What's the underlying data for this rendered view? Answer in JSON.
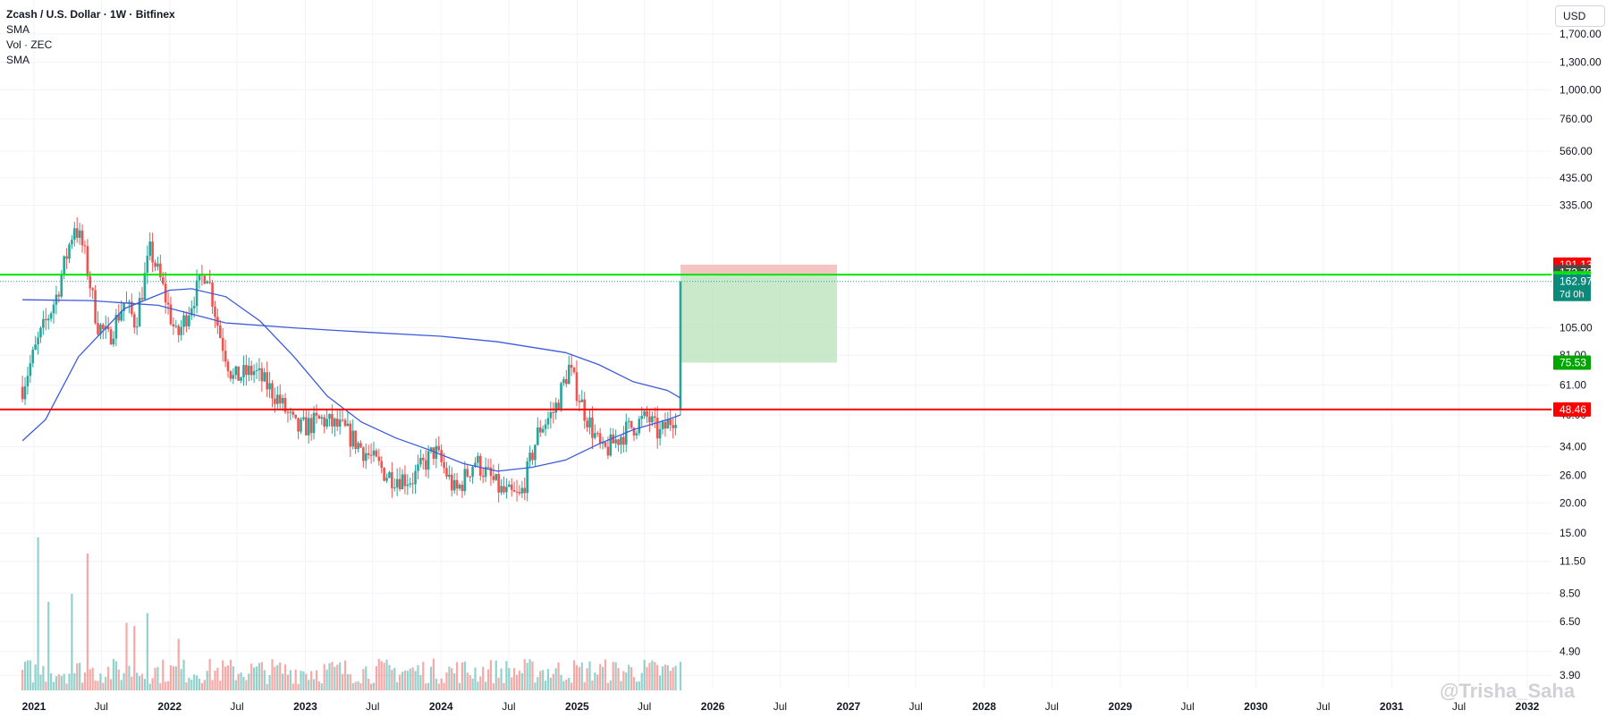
{
  "legend": {
    "title": "Zcash / U.S. Dollar · 1W · Bitfinex",
    "line1": "SMA",
    "line2": "Vol · ZEC",
    "line3": "SMA"
  },
  "currency_label": "USD",
  "watermark": "@Trisha_Saha",
  "colors": {
    "up": "#26a69a",
    "down": "#ef5350",
    "sma": "#3c5bdc",
    "support_line": "#ff0000",
    "resistance_line": "#00e600",
    "target_zone": "#b8e2b8",
    "stop_zone": "#f6c3c3"
  },
  "chart_data": {
    "type": "candlestick",
    "title": "Zcash / U.S. Dollar · 1W · Bitfinex",
    "y_scale": "log",
    "y_ticks": [
      "1,700.00",
      "1,300.00",
      "1,000.00",
      "760.00",
      "560.00",
      "435.00",
      "335.00",
      "105.00",
      "81.00",
      "61.00",
      "46.00",
      "34.00",
      "26.00",
      "20.00",
      "15.00",
      "11.50",
      "8.50",
      "6.50",
      "4.90",
      "3.90"
    ],
    "x_ticks": [
      "2021",
      "Jul",
      "2022",
      "Jul",
      "2023",
      "Jul",
      "2024",
      "Jul",
      "2025",
      "Jul",
      "2026",
      "Jul",
      "2027",
      "Jul",
      "2028",
      "Jul",
      "2029",
      "Jul",
      "2030",
      "Jul",
      "2031",
      "Jul",
      "2032"
    ],
    "close_path": [
      [
        "2020-12-01",
        60
      ],
      [
        "2021-01-15",
        95
      ],
      [
        "2021-03-01",
        140
      ],
      [
        "2021-04-20",
        280
      ],
      [
        "2021-05-15",
        220
      ],
      [
        "2021-06-20",
        110
      ],
      [
        "2021-07-20",
        95
      ],
      [
        "2021-09-01",
        135
      ],
      [
        "2021-10-01",
        110
      ],
      [
        "2021-11-10",
        220
      ],
      [
        "2021-12-10",
        160
      ],
      [
        "2022-01-20",
        95
      ],
      [
        "2022-03-10",
        145
      ],
      [
        "2022-04-10",
        185
      ],
      [
        "2022-05-15",
        100
      ],
      [
        "2022-06-20",
        65
      ],
      [
        "2022-08-15",
        70
      ],
      [
        "2022-10-15",
        55
      ],
      [
        "2022-12-10",
        40
      ],
      [
        "2023-02-15",
        44
      ],
      [
        "2023-04-15",
        40
      ],
      [
        "2023-06-15",
        32
      ],
      [
        "2023-08-10",
        26
      ],
      [
        "2023-10-15",
        25
      ],
      [
        "2023-12-15",
        33
      ],
      [
        "2024-02-10",
        22
      ],
      [
        "2024-04-01",
        30
      ],
      [
        "2024-06-15",
        22
      ],
      [
        "2024-08-01",
        21
      ],
      [
        "2024-09-20",
        40
      ],
      [
        "2024-11-01",
        48
      ],
      [
        "2024-12-10",
        72
      ],
      [
        "2025-01-20",
        48
      ],
      [
        "2025-03-10",
        32
      ],
      [
        "2025-05-15",
        40
      ],
      [
        "2025-07-10",
        45
      ],
      [
        "2025-08-10",
        38
      ],
      [
        "2025-09-15",
        45
      ],
      [
        "2025-09-29",
        48.46
      ],
      [
        "2025-10-06",
        162.97
      ]
    ],
    "sma_slow": [
      [
        "2020-12-01",
        137
      ],
      [
        "2021-06-01",
        136
      ],
      [
        "2021-12-01",
        130
      ],
      [
        "2022-06-01",
        110
      ],
      [
        "2022-12-01",
        105
      ],
      [
        "2023-06-01",
        101
      ],
      [
        "2024-01-01",
        97
      ],
      [
        "2024-06-01",
        92
      ],
      [
        "2024-12-01",
        83
      ],
      [
        "2025-03-01",
        74
      ],
      [
        "2025-06-01",
        63
      ],
      [
        "2025-09-01",
        58
      ],
      [
        "2025-10-06",
        54
      ]
    ],
    "sma_fast": [
      [
        "2020-12-01",
        36
      ],
      [
        "2021-02-01",
        44
      ],
      [
        "2021-05-01",
        80
      ],
      [
        "2021-09-01",
        126
      ],
      [
        "2022-01-01",
        150
      ],
      [
        "2022-03-01",
        152
      ],
      [
        "2022-06-01",
        141
      ],
      [
        "2022-09-01",
        112
      ],
      [
        "2022-12-01",
        80
      ],
      [
        "2023-03-01",
        55
      ],
      [
        "2023-06-01",
        43
      ],
      [
        "2023-09-01",
        37
      ],
      [
        "2023-12-01",
        33
      ],
      [
        "2024-03-01",
        29
      ],
      [
        "2024-06-01",
        27
      ],
      [
        "2024-09-01",
        28
      ],
      [
        "2024-12-01",
        30
      ],
      [
        "2025-03-01",
        35
      ],
      [
        "2025-06-01",
        40
      ],
      [
        "2025-09-01",
        44
      ],
      [
        "2025-10-06",
        46
      ]
    ],
    "horizontal_lines": [
      {
        "price": 48.46,
        "label": "48.46",
        "color": "#ff0000"
      },
      {
        "price": 173.76,
        "label": "173.76",
        "color": "#00e600"
      }
    ],
    "price_labels": [
      {
        "price": 191.13,
        "label": "191.13",
        "bg": "#ff0000"
      },
      {
        "price": 178.0,
        "label": "173.76",
        "bg": "#4a4a4a"
      },
      {
        "price": 168.0,
        "label": "173.76",
        "bg": "#00e600"
      },
      {
        "price": 162.97,
        "label": "162.97",
        "sub": "7d 0h",
        "bg": "#0b8a7a"
      },
      {
        "price": 75.53,
        "label": "75.53",
        "bg": "#00a600"
      },
      {
        "price": 48.46,
        "label": "48.46",
        "bg": "#ff0000"
      }
    ],
    "position": {
      "start": "2025-10-06",
      "end": "2026-12-01",
      "entry": 173.76,
      "stop": 191.13,
      "target": 75.53
    }
  }
}
